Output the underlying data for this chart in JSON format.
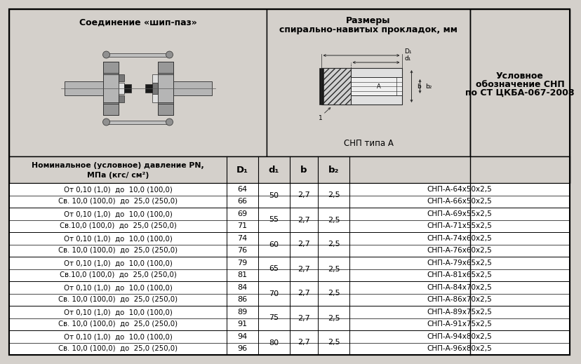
{
  "title_col1": "Соединение «шип-паз»",
  "title_col2_line1": "Размеры",
  "title_col2_line2": "спирально-навитых прокладок, мм",
  "title_col2_sub": "СНП типа А",
  "title_col3_line1": "Условное",
  "title_col3_line2": "обозначение СНП",
  "title_col3_line3": "по СТ ЦКБА-067-2008",
  "bg_color": "#d4d0cb",
  "white": "#ffffff",
  "black": "#000000",
  "gray_flange": "#a0a0a0",
  "gray_light": "#c8c8c8",
  "pair_data": [
    {
      "pt": "От 0,10 (1,0)  до  10,0 (100,0)",
      "pb": "Св. 10,0 (100,0)  до  25,0 (250,0)",
      "D1t": "64",
      "D1b": "66",
      "d1": "50",
      "b": "2,7",
      "b2": "2,5",
      "snp_t": "СНП-А-64х50х2,5",
      "snp_b": "СНП-А-66х50х2,5"
    },
    {
      "pt": "От 0,10 (1,0)  до  10,0 (100,0)",
      "pb": "Св.10,0 (100,0)  до  25,0 (250,0)",
      "D1t": "69",
      "D1b": "71",
      "d1": "55",
      "b": "2,7",
      "b2": "2,5",
      "snp_t": "СНП-А-69х55х2,5",
      "snp_b": "СНП-А-71х55х2,5"
    },
    {
      "pt": "От 0,10 (1,0)  до  10,0 (100,0)",
      "pb": "Св. 10,0 (100,0)  до  25,0 (250,0)",
      "D1t": "74",
      "D1b": "76",
      "d1": "60",
      "b": "2,7",
      "b2": "2,5",
      "snp_t": "СНП-А-74х60х2,5",
      "snp_b": "СНП-А-76х60х2,5"
    },
    {
      "pt": "От 0,10 (1,0)  до  10,0 (100,0)",
      "pb": "Св.10,0 (100,0)  до  25,0 (250,0)",
      "D1t": "79",
      "D1b": "81",
      "d1": "65",
      "b": "2,7",
      "b2": "2,5",
      "snp_t": "СНП-А-79х65х2,5",
      "snp_b": "СНП-А-81х65х2,5"
    },
    {
      "pt": "От 0,10 (1,0)  до  10,0 (100,0)",
      "pb": "Св. 10,0 (100,0)  до  25,0 (250,0)",
      "D1t": "84",
      "D1b": "86",
      "d1": "70",
      "b": "2,7",
      "b2": "2,5",
      "snp_t": "СНП-А-84х70х2,5",
      "snp_b": "СНП-А-86х70х2,5"
    },
    {
      "pt": "От 0,10 (1,0)  до  10,0 (100,0)",
      "pb": "Св. 10,0 (100,0)  до  25,0 (250,0)",
      "D1t": "89",
      "D1b": "91",
      "d1": "75",
      "b": "2,7",
      "b2": "2,5",
      "snp_t": "СНП-А-89х75х2,5",
      "snp_b": "СНП-А-91х75х2,5"
    },
    {
      "pt": "От 0,10 (1,0)  до  10,0 (100,0)",
      "pb": "Св. 10,0 (100,0)  до  25,0 (250,0)",
      "D1t": "94",
      "D1b": "96",
      "d1": "80",
      "b": "2,7",
      "b2": "2,5",
      "snp_t": "СНП-А-94х80х2,5",
      "snp_b": "СНП-А-96х80х2,5"
    }
  ]
}
